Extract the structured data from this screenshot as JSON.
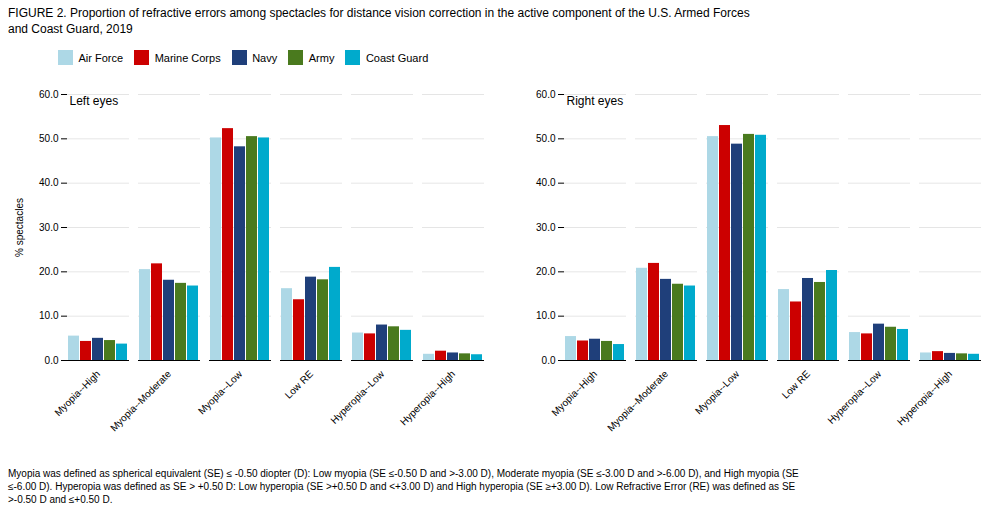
{
  "chart_data": {
    "type": "bar",
    "title": "FIGURE 2. Proportion of refractive errors among spectacles for distance vision correction in the active component of the U.S. Armed Forces\nand Coast Guard, 2019",
    "caption": "Myopia was defined as spherical equivalent (SE) ≤ -0.50 diopter (D): Low myopia (SE ≤-0.50 D and >-3.00 D), Moderate myopia (SE ≤-3.00 D and >-6.00 D), and High myopia (SE\n≤-6.00 D). Hyperopia was defined as SE > +0.50 D: Low hyperopia (SE >+0.50 D and <+3.00 D) and High hyperopia (SE ≥+3.00 D). Low Refractive Error (RE) was defined as SE\n>-0.50 D and ≤+0.50 D.",
    "ylabel": "% spectacles",
    "ylim": [
      0,
      60
    ],
    "yticks": [
      {
        "value": 0,
        "label": "0.0"
      },
      {
        "value": 10,
        "label": "10.0"
      },
      {
        "value": 20,
        "label": "20.0"
      },
      {
        "value": 30,
        "label": "30.0"
      },
      {
        "value": 40,
        "label": "40.0"
      },
      {
        "value": 50,
        "label": "50.0"
      },
      {
        "value": 60,
        "label": "60.0"
      }
    ],
    "grid": true,
    "categories": [
      "Myopia--High",
      "Myopia--Moderate",
      "Myopia--Low",
      "Low RE",
      "Hyperopia--Low",
      "Hyperopia--High"
    ],
    "groups": [
      {
        "annotation": "Left eyes",
        "series": [
          {
            "name": "Air Force",
            "color": "#add8e6",
            "values": [
              5.5,
              20.5,
              50.2,
              16.2,
              6.2,
              1.4
            ]
          },
          {
            "name": "Marine Corps",
            "color": "#cc0000",
            "values": [
              4.3,
              21.8,
              52.3,
              13.7,
              6.0,
              2.1
            ]
          },
          {
            "name": "Navy",
            "color": "#1f3f7a",
            "values": [
              5.0,
              18.1,
              48.2,
              18.8,
              8.0,
              1.7
            ]
          },
          {
            "name": "Army",
            "color": "#4a7a1e",
            "values": [
              4.5,
              17.4,
              50.5,
              18.2,
              7.6,
              1.5
            ]
          },
          {
            "name": "Coast Guard",
            "color": "#00aacc",
            "values": [
              3.7,
              16.8,
              50.2,
              21.0,
              6.8,
              1.3
            ]
          }
        ]
      },
      {
        "annotation": "Right eyes",
        "series": [
          {
            "name": "Air Force",
            "color": "#add8e6",
            "values": [
              5.4,
              20.8,
              50.5,
              16.0,
              6.3,
              1.7
            ]
          },
          {
            "name": "Marine Corps",
            "color": "#cc0000",
            "values": [
              4.4,
              21.9,
              53.0,
              13.2,
              6.0,
              2.0
            ]
          },
          {
            "name": "Navy",
            "color": "#1f3f7a",
            "values": [
              4.8,
              18.3,
              48.8,
              18.5,
              8.2,
              1.6
            ]
          },
          {
            "name": "Army",
            "color": "#4a7a1e",
            "values": [
              4.3,
              17.2,
              51.0,
              17.6,
              7.5,
              1.5
            ]
          },
          {
            "name": "Coast Guard",
            "color": "#00aacc",
            "values": [
              3.6,
              16.8,
              50.8,
              20.3,
              7.0,
              1.4
            ]
          }
        ]
      }
    ]
  }
}
